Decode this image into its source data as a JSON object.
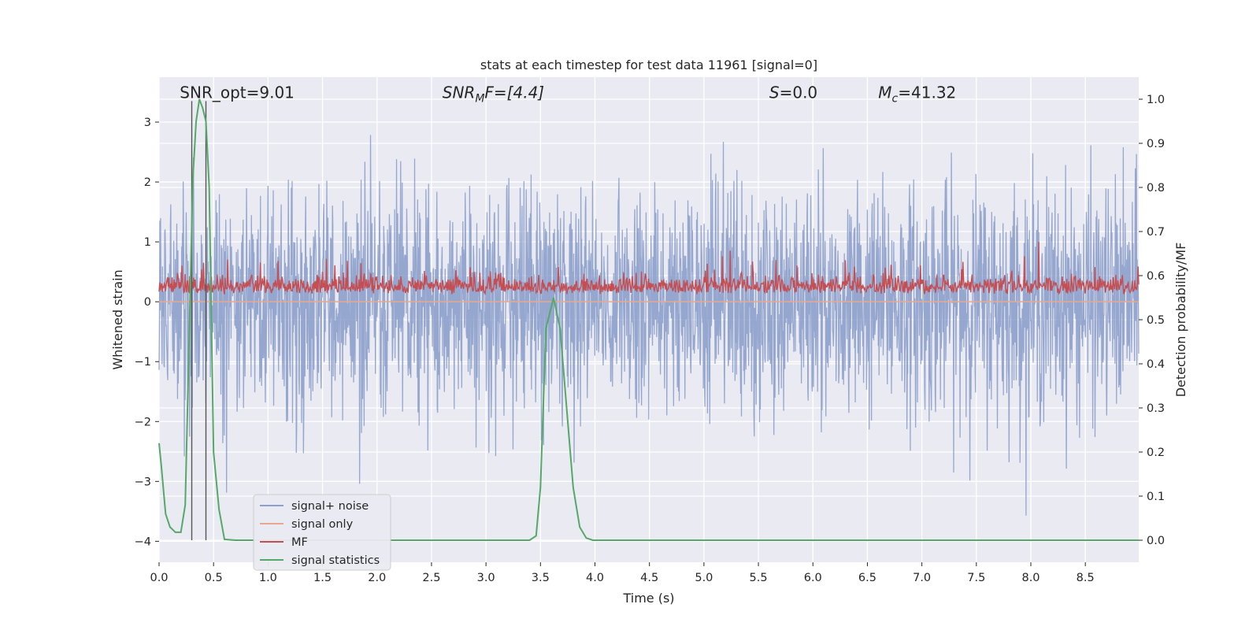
{
  "chart_data": {
    "type": "line",
    "title": "stats at each timestep for test data 11961 [signal=0]",
    "xlabel": "Time (s)",
    "ylabel_left": "Whitened strain",
    "ylabel_right": "Detection probability/MF",
    "xlim": [
      0,
      8.99
    ],
    "ylim_left": [
      -4.35,
      3.75
    ],
    "ylim_right": [
      -0.05,
      1.05
    ],
    "x_ticks": [
      "0.0",
      "0.5",
      "1.0",
      "1.5",
      "2.0",
      "2.5",
      "3.0",
      "3.5",
      "4.0",
      "4.5",
      "5.0",
      "5.5",
      "6.0",
      "6.5",
      "7.0",
      "7.5",
      "8.0",
      "8.5"
    ],
    "x_tick_values": [
      0,
      0.5,
      1,
      1.5,
      2,
      2.5,
      3,
      3.5,
      4,
      4.5,
      5,
      5.5,
      6,
      6.5,
      7,
      7.5,
      8,
      8.5
    ],
    "y_ticks_left": [
      "−4",
      "−3",
      "−2",
      "−1",
      "0",
      "1",
      "2",
      "3"
    ],
    "y_tick_values_left": [
      -4,
      -3,
      -2,
      -1,
      0,
      1,
      2,
      3
    ],
    "y_ticks_right": [
      "0.0",
      "0.1",
      "0.2",
      "0.3",
      "0.4",
      "0.5",
      "0.6",
      "0.7",
      "0.8",
      "0.9",
      "1.0"
    ],
    "y_tick_values_right": [
      0,
      0.1,
      0.2,
      0.3,
      0.4,
      0.5,
      0.6,
      0.7,
      0.8,
      0.9,
      1.0
    ],
    "grid": true,
    "legend_position": "lower-left",
    "annotations": [
      {
        "text": "SNR_opt=9.01",
        "x": 0.19,
        "y": 3.4
      },
      {
        "text": "SNR",
        "sub": "M",
        "suffix": "F=[4.4]",
        "x": 2.6,
        "y": 3.4
      },
      {
        "text": "S",
        "suffix": "=0.0",
        "x": 5.6,
        "y": 3.4
      },
      {
        "text": "M",
        "sub": "c",
        "suffix": "=41.32",
        "x": 6.6,
        "y": 3.4
      }
    ],
    "vlines": [
      0.3,
      0.43
    ],
    "series": [
      {
        "name": "signal+ noise",
        "color": "#8da0cb",
        "axis": "left",
        "kind": "noise",
        "amplitude": 0.95,
        "x_range": [
          0,
          8.99
        ]
      },
      {
        "name": "signal only",
        "color": "#e9a88d",
        "axis": "left",
        "kind": "flat",
        "value": 0.0
      },
      {
        "name": "MF",
        "color": "#c44e52",
        "axis": "left",
        "kind": "mf",
        "base": 0.22,
        "x_range": [
          0,
          8.99
        ]
      },
      {
        "name": "signal statistics",
        "color": "#55a868",
        "axis": "right",
        "x": [
          0.0,
          0.02,
          0.06,
          0.1,
          0.15,
          0.2,
          0.24,
          0.28,
          0.31,
          0.34,
          0.37,
          0.4,
          0.43,
          0.46,
          0.5,
          0.55,
          0.6,
          0.7,
          1.0,
          1.5,
          2.0,
          2.5,
          3.0,
          3.4,
          3.46,
          3.5,
          3.55,
          3.62,
          3.68,
          3.74,
          3.8,
          3.86,
          3.92,
          3.98,
          4.2,
          5.0,
          6.0,
          7.0,
          8.0,
          8.99
        ],
        "y": [
          0.22,
          0.17,
          0.06,
          0.03,
          0.018,
          0.018,
          0.08,
          0.5,
          0.82,
          0.95,
          1.0,
          0.98,
          0.95,
          0.8,
          0.2,
          0.07,
          0.002,
          0.0,
          0.0,
          0.0,
          0.0,
          0.0,
          0.0,
          0.0,
          0.01,
          0.12,
          0.48,
          0.55,
          0.48,
          0.3,
          0.12,
          0.03,
          0.005,
          0.0,
          0.0,
          0.0,
          0.0,
          0.0,
          0.0,
          0.0
        ]
      }
    ]
  }
}
